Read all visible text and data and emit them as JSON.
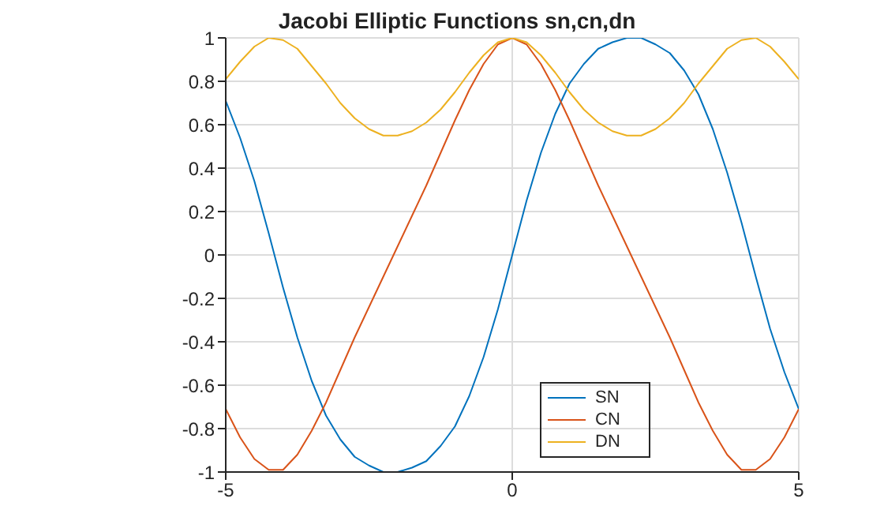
{
  "chart_data": {
    "type": "line",
    "title": "Jacobi Elliptic Functions sn,cn,dn",
    "x": [
      -5,
      -4.75,
      -4.5,
      -4.25,
      -4,
      -3.75,
      -3.5,
      -3.25,
      -3,
      -2.75,
      -2.5,
      -2.25,
      -2,
      -1.75,
      -1.5,
      -1.25,
      -1,
      -0.75,
      -0.5,
      -0.25,
      0,
      0.25,
      0.5,
      0.75,
      1,
      1.25,
      1.5,
      1.75,
      2,
      2.25,
      2.5,
      2.75,
      3,
      3.25,
      3.5,
      3.75,
      4,
      4.25,
      4.5,
      4.75,
      5
    ],
    "series": [
      {
        "name": "SN",
        "color": "#0072bd",
        "values": [
          0.71,
          0.54,
          0.34,
          0.1,
          -0.15,
          -0.38,
          -0.58,
          -0.74,
          -0.85,
          -0.93,
          -0.97,
          -1.0,
          -1.0,
          -0.98,
          -0.95,
          -0.88,
          -0.79,
          -0.65,
          -0.47,
          -0.25,
          0,
          0.25,
          0.47,
          0.65,
          0.79,
          0.88,
          0.95,
          0.98,
          1.0,
          1.0,
          0.97,
          0.93,
          0.85,
          0.74,
          0.58,
          0.38,
          0.15,
          -0.1,
          -0.34,
          -0.54,
          -0.71
        ]
      },
      {
        "name": "CN",
        "color": "#d95319",
        "values": [
          -0.71,
          -0.84,
          -0.94,
          -0.99,
          -0.99,
          -0.92,
          -0.81,
          -0.68,
          -0.53,
          -0.38,
          -0.24,
          -0.1,
          0.04,
          0.18,
          0.32,
          0.47,
          0.62,
          0.76,
          0.88,
          0.97,
          1.0,
          0.97,
          0.88,
          0.76,
          0.62,
          0.47,
          0.32,
          0.18,
          0.04,
          -0.1,
          -0.24,
          -0.38,
          -0.53,
          -0.68,
          -0.81,
          -0.92,
          -0.99,
          -0.99,
          -0.94,
          -0.84,
          -0.71
        ]
      },
      {
        "name": "DN",
        "color": "#edb120",
        "values": [
          0.81,
          0.89,
          0.96,
          1.0,
          0.99,
          0.95,
          0.87,
          0.79,
          0.7,
          0.63,
          0.58,
          0.55,
          0.55,
          0.57,
          0.61,
          0.67,
          0.75,
          0.84,
          0.92,
          0.98,
          1.0,
          0.98,
          0.92,
          0.84,
          0.75,
          0.67,
          0.61,
          0.57,
          0.55,
          0.55,
          0.58,
          0.63,
          0.7,
          0.79,
          0.87,
          0.95,
          0.99,
          1.0,
          0.96,
          0.89,
          0.81
        ]
      }
    ],
    "xlim": [
      -5,
      5
    ],
    "xticks": [
      -5,
      0,
      5
    ],
    "ylim": [
      -1,
      1
    ],
    "yticks": [
      -1,
      -0.8,
      -0.6,
      -0.4,
      -0.2,
      0,
      0.2,
      0.4,
      0.6,
      0.8,
      1
    ],
    "grid": true,
    "legend": "bottom right",
    "line_style": "solid"
  }
}
